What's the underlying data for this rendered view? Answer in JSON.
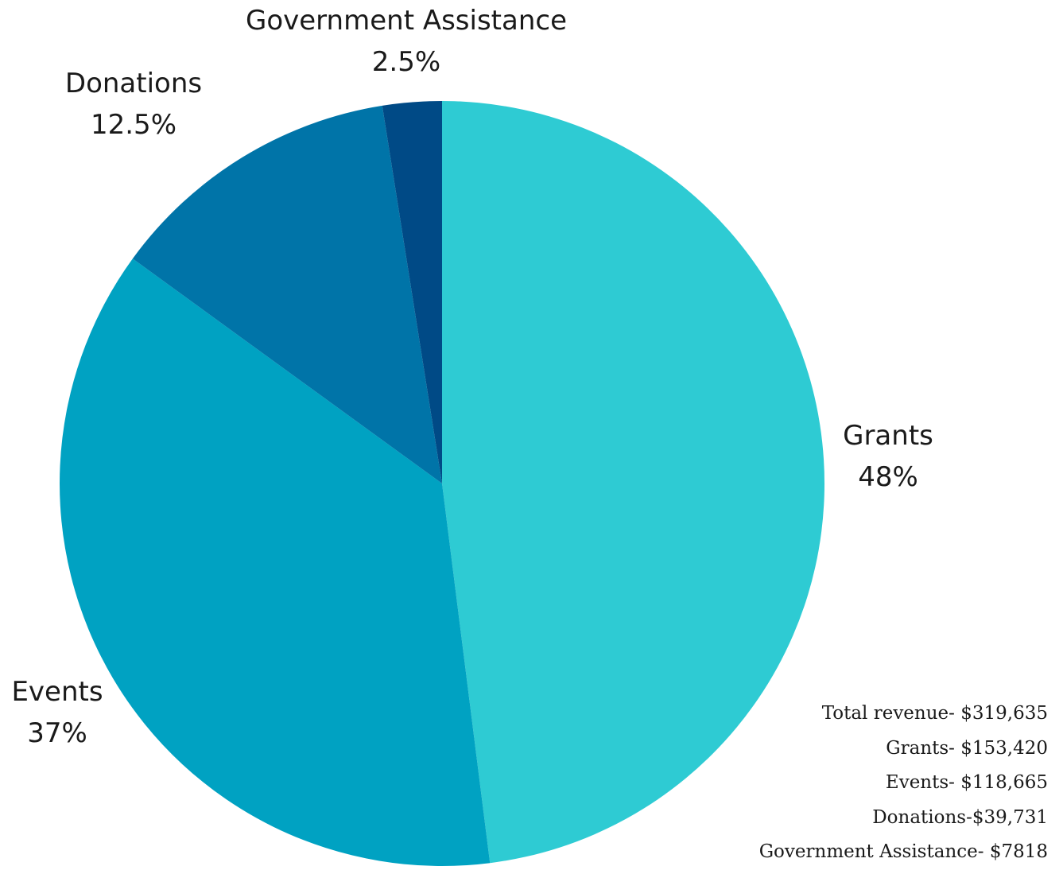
{
  "chart_data": {
    "type": "pie",
    "slices": [
      {
        "label": "Grants",
        "percent_label": "48%",
        "value": 48,
        "color": "#2ecbd3"
      },
      {
        "label": "Events",
        "percent_label": "37%",
        "value": 37,
        "color": "#00a2c2"
      },
      {
        "label": "Donations",
        "percent_label": "12.5%",
        "value": 12.5,
        "color": "#0074a8"
      },
      {
        "label": "Government Assistance",
        "percent_label": "2.5%",
        "value": 2.5,
        "color": "#004a86"
      }
    ],
    "start": "12 o'clock",
    "direction": "clockwise"
  },
  "summary": {
    "total": "Total revenue- $319,635",
    "grants": "Grants- $153,420",
    "events": "Events- $118,665",
    "donations": "Donations-$39,731",
    "government": "Government Assistance- $7818"
  }
}
